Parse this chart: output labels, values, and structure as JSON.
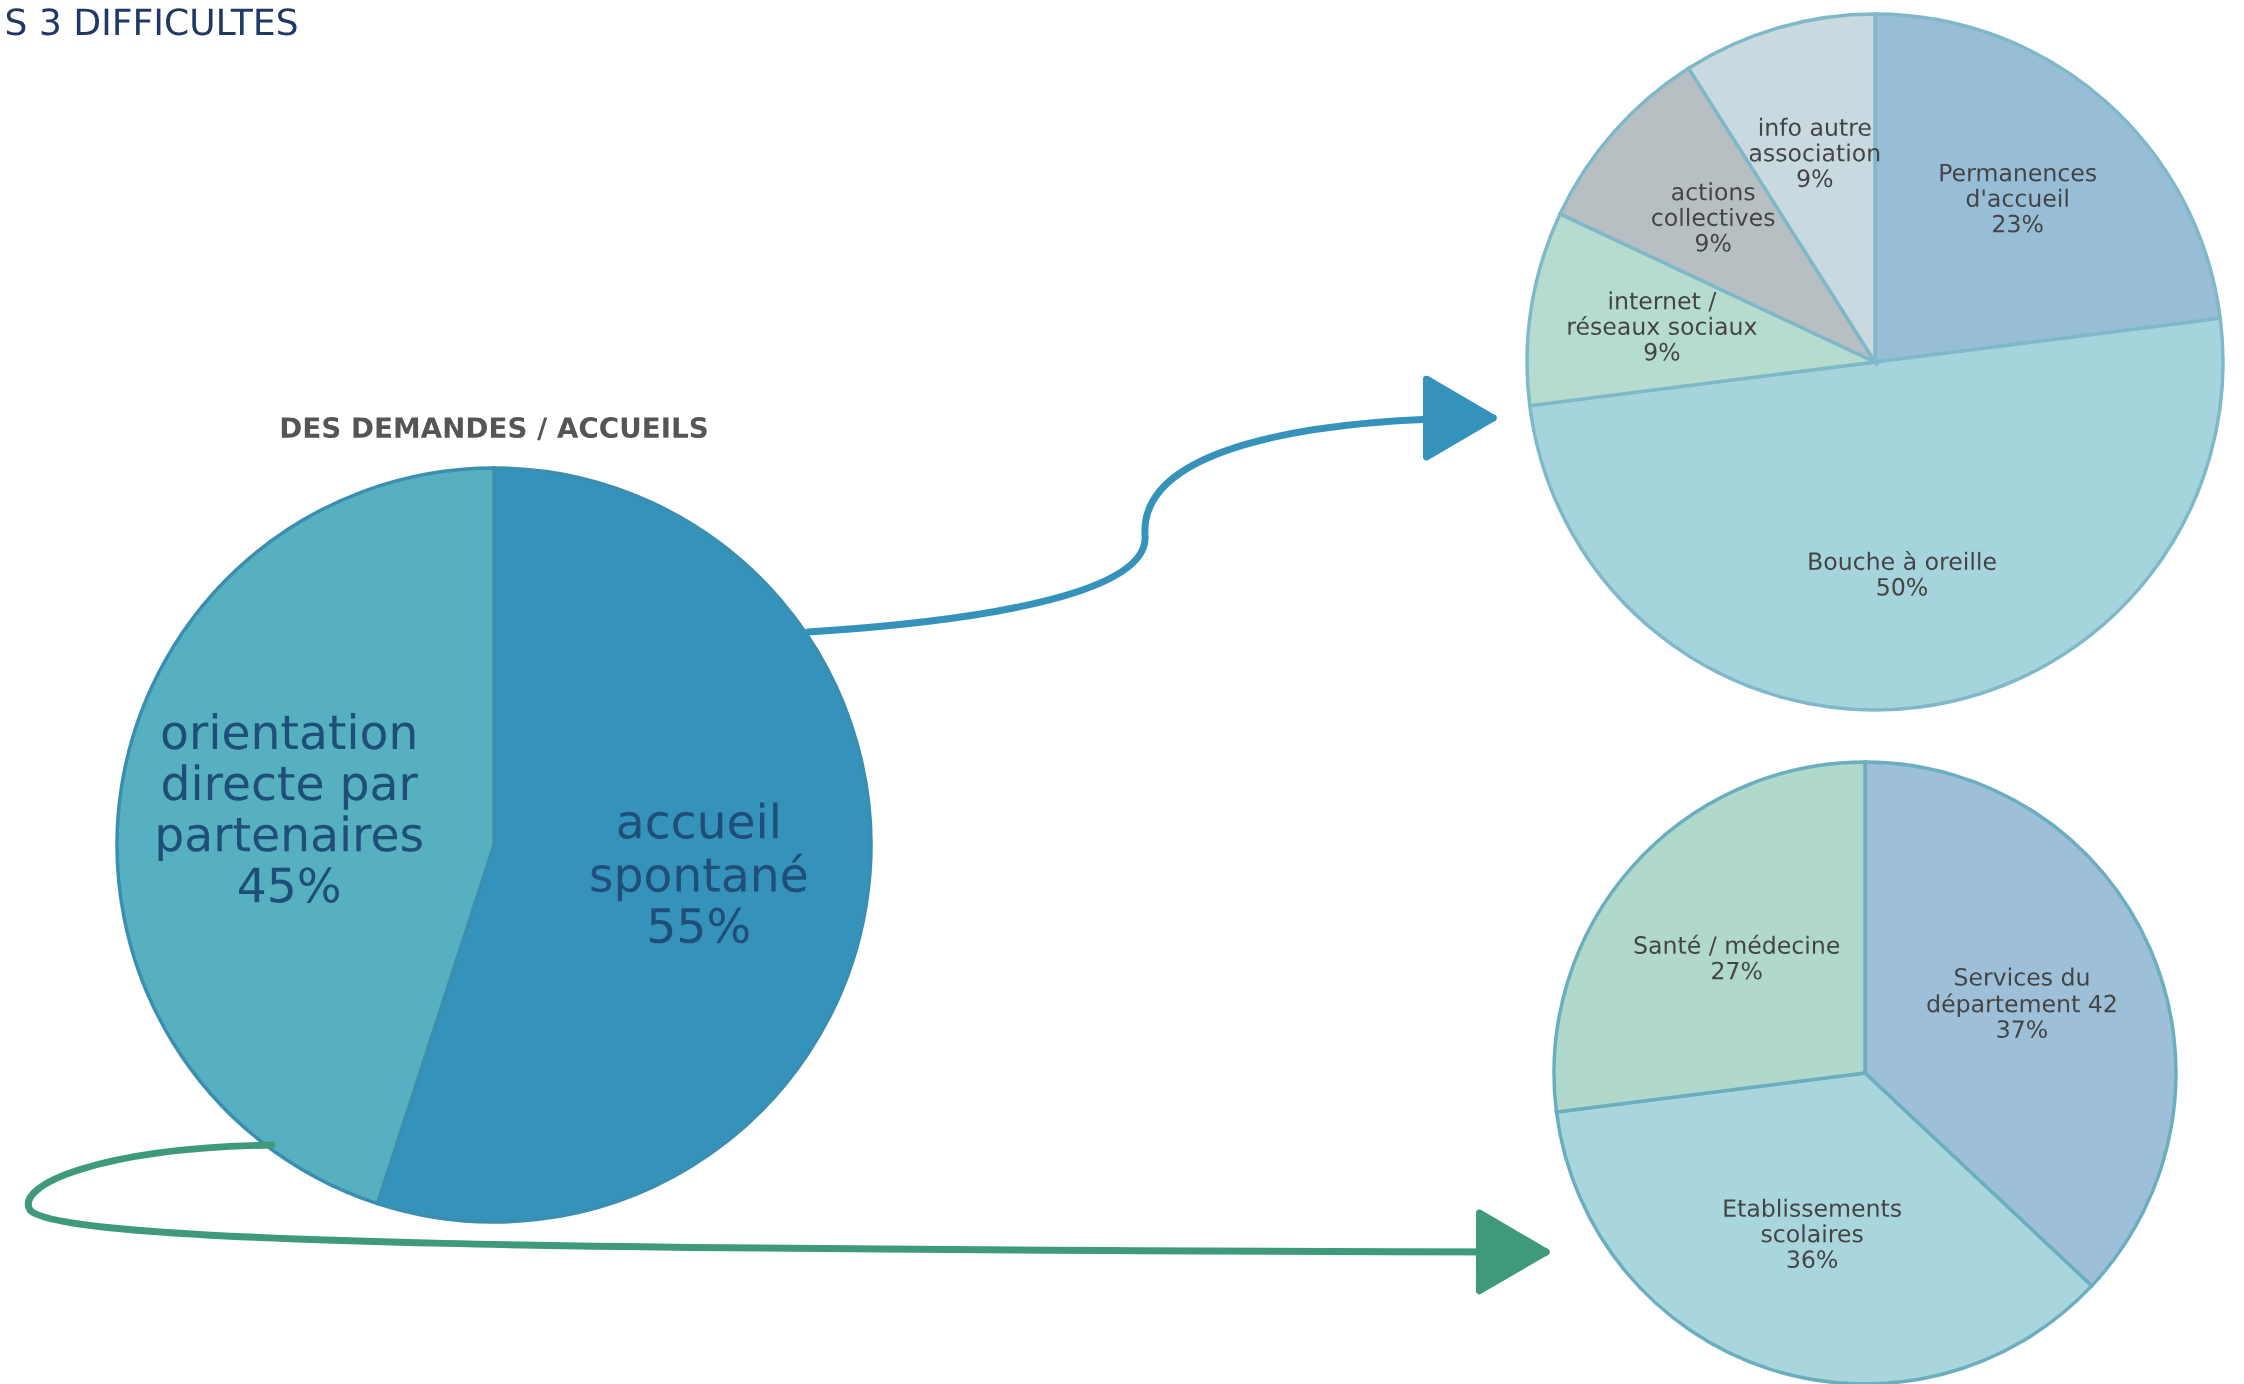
{
  "chart_data": [
    {
      "type": "pie",
      "title": "DES DEMANDES / ACCUEILS",
      "annotations": [
        "S 3 DIFFICULTES"
      ],
      "categories": [
        "accueil\nspontané",
        "orientation\ndirecte par\npartenaires"
      ],
      "values": [
        55,
        45
      ],
      "value_labels": [
        "55%",
        "45%"
      ],
      "colors": [
        "#3592bb",
        "#56b0bf"
      ]
    },
    {
      "type": "pie",
      "categories": [
        "Permanences\nd'accueil",
        "Bouche à oreille",
        "internet /\nréseaux sociaux",
        "actions\ncollectives",
        "info autre\nassociation"
      ],
      "values": [
        23,
        50,
        9,
        9,
        9
      ],
      "value_labels": [
        "23%",
        "50%",
        "9%",
        "9%",
        "9%"
      ],
      "colors": [
        "#98bdd6",
        "#a6d4dc",
        "#b6dcd0",
        "#b8bfc3",
        "#c8d9df"
      ]
    },
    {
      "type": "pie",
      "categories": [
        "Services du\ndépartement 42",
        "Etablissements\nscolaires",
        "Santé / médecine"
      ],
      "values": [
        37,
        36,
        27
      ],
      "value_labels": [
        "37%",
        "36%",
        "27%"
      ],
      "colors": [
        "#9dbfd8",
        "#a9d6dd",
        "#b0d9cc"
      ]
    }
  ]
}
